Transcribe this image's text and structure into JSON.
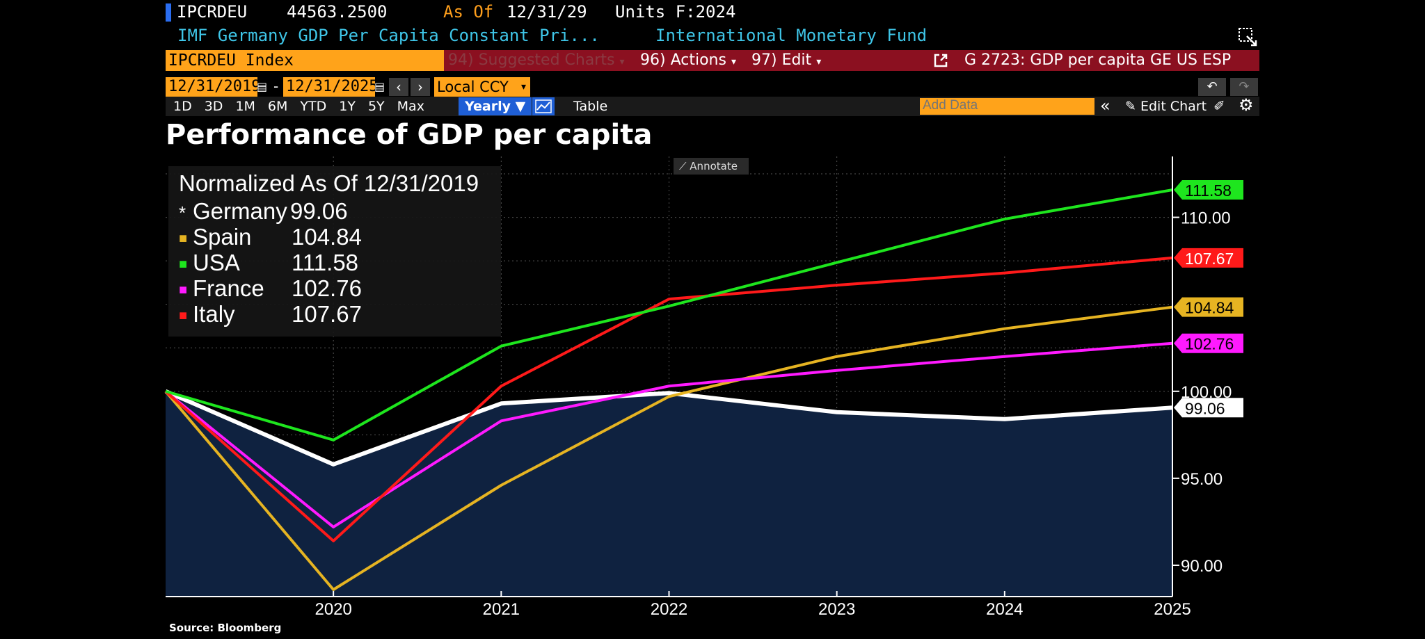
{
  "header": {
    "ticker": "IPCRDEU",
    "last_value": "44563.2500",
    "as_of_label": "As Of",
    "as_of_date": "12/31/29",
    "units": "Units F:2024",
    "description": "IMF Germany GDP Per Capita Constant Pri...",
    "source_org": "International Monetary Fund"
  },
  "command_bar": {
    "security": "IPCRDEU Index",
    "suggested": "94) Suggested Charts",
    "actions": "96) Actions",
    "edit": "97) Edit",
    "chart_title": "G 2723: GDP per capita GE US ESP"
  },
  "range_bar": {
    "start_date": "12/31/2019",
    "dash": "-",
    "end_date": "12/31/2025",
    "currency": "Local CCY"
  },
  "period_buttons": [
    "1D",
    "3D",
    "1M",
    "6M",
    "YTD",
    "1Y",
    "5Y",
    "Max"
  ],
  "frequency": "Yearly",
  "table_label": "Table",
  "add_data_placeholder": "Add Data",
  "edit_chart_label": "Edit Chart",
  "annotate_label": "Annotate",
  "source_note": "Source: Bloomberg",
  "colors": {
    "background": "#000000",
    "germany": "#ffffff",
    "spain": "#e6b422",
    "usa": "#1ee61e",
    "france": "#ff1aff",
    "italy": "#ff1a1a",
    "area": "#0f2240"
  },
  "chart_data": {
    "type": "line",
    "title": "Performance of GDP per capita",
    "subtitle": "Normalized As Of 12/31/2019",
    "x": [
      2019,
      2020,
      2021,
      2022,
      2023,
      2024,
      2025
    ],
    "x_tick_labels": [
      "2020",
      "2021",
      "2022",
      "2023",
      "2024",
      "2025"
    ],
    "y_ticks": [
      "90.00",
      "95.00",
      "100.00",
      "110.00"
    ],
    "ylim": [
      88.2,
      113.5
    ],
    "legend_position": "top-left",
    "series": [
      {
        "name": "Germany",
        "marker": "*",
        "color": "#ffffff",
        "last": "99.06",
        "values": [
          100.0,
          95.8,
          99.3,
          99.9,
          98.8,
          98.4,
          99.06
        ]
      },
      {
        "name": "Spain",
        "marker": "■",
        "color": "#e6b422",
        "last": "104.84",
        "values": [
          100.0,
          88.6,
          94.6,
          99.7,
          102.0,
          103.6,
          104.84
        ]
      },
      {
        "name": "USA",
        "marker": "■",
        "color": "#1ee61e",
        "last": "111.58",
        "values": [
          100.0,
          97.2,
          102.6,
          104.9,
          107.4,
          109.9,
          111.58
        ]
      },
      {
        "name": "France",
        "marker": "■",
        "color": "#ff1aff",
        "last": "102.76",
        "values": [
          100.0,
          92.2,
          98.3,
          100.3,
          101.2,
          102.0,
          102.76
        ]
      },
      {
        "name": "Italy",
        "marker": "■",
        "color": "#ff1a1a",
        "last": "107.67",
        "values": [
          100.0,
          91.4,
          100.3,
          105.3,
          106.1,
          106.8,
          107.67
        ]
      }
    ]
  }
}
